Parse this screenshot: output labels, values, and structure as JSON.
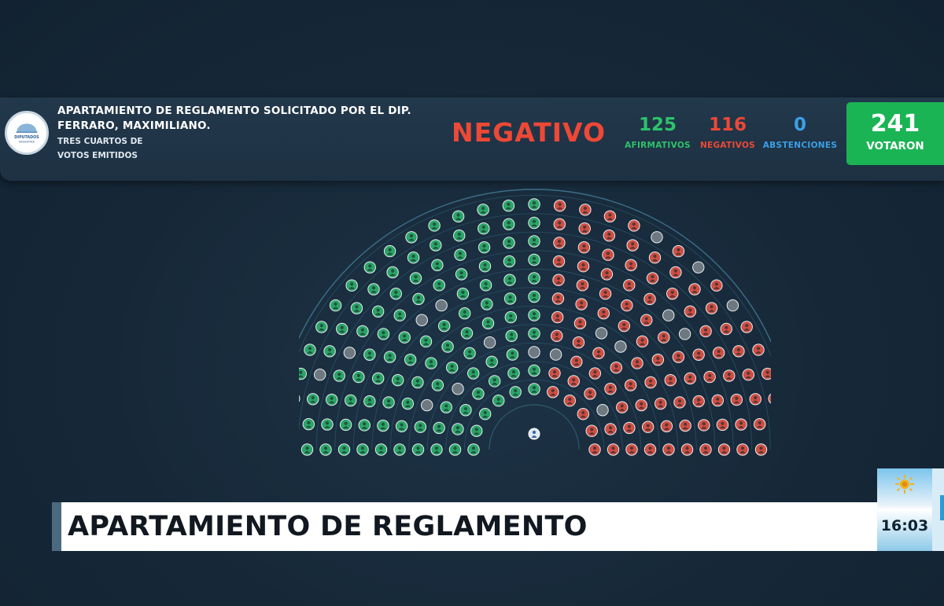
{
  "header": {
    "title": "APARTAMIENTO DE REGLAMENTO SOLICITADO POR EL DIP. FERRARO, MAXIMILIANO.",
    "majority": "TRES CUARTOS DE VOTOS EMITIDOS",
    "logo_text_1": "DIPUTADOS",
    "logo_text_2": "ARGENTINA"
  },
  "result": {
    "label": "NEGATIVO",
    "color": "#ee4836"
  },
  "counts": {
    "afirmativos": {
      "value": "125",
      "label": "AFIRMATIVOS",
      "color": "#2ec26b"
    },
    "negativos": {
      "value": "116",
      "label": "NEGATIVOS",
      "color": "#ee4836"
    },
    "abstenciones": {
      "value": "0",
      "label": "ABSTENCIONES",
      "color": "#3b9fe6"
    },
    "votaron": {
      "value": "241",
      "label": "VOTARON",
      "color": "#1ab454"
    }
  },
  "chamber": {
    "rows": [
      11,
      13,
      15,
      17,
      19,
      21,
      23,
      25,
      27,
      29,
      31
    ],
    "absent_seats": [
      [
        1,
        10
      ],
      [
        2,
        3
      ],
      [
        2,
        7
      ],
      [
        2,
        8
      ],
      [
        3,
        2
      ],
      [
        3,
        6
      ],
      [
        4,
        12
      ],
      [
        4,
        13
      ],
      [
        6,
        6
      ],
      [
        6,
        7
      ],
      [
        7,
        18
      ],
      [
        7,
        19
      ],
      [
        8,
        4
      ],
      [
        9,
        3
      ],
      [
        10,
        20
      ],
      [
        10,
        22
      ],
      [
        10,
        24
      ]
    ],
    "afirmativo_ratio": 0.5187,
    "colors": {
      "afirmativo": "#2aa566",
      "negativo": "#cf4f43",
      "ausente": "#6e7880"
    },
    "president_icon": "president-seat-icon"
  },
  "lower_third": {
    "text": "APARTAMIENTO DE REGLAMENTO"
  },
  "clock": {
    "time": "16:03",
    "icon": "sun-of-may-icon"
  }
}
